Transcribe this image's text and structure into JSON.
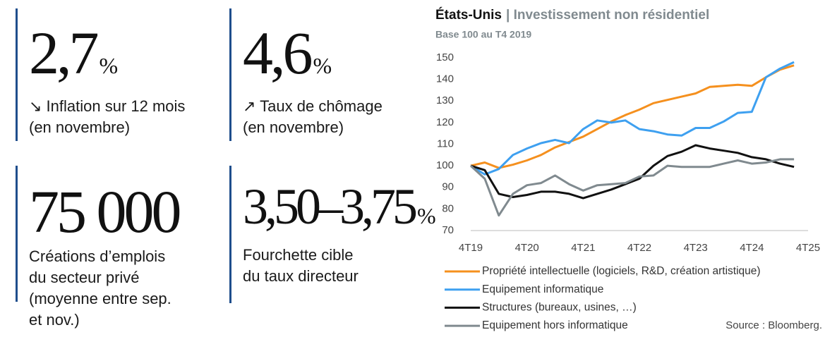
{
  "stats": [
    {
      "value": "2,7",
      "unit": "%",
      "label_lines": [
        "↘ Inflation sur 12 mois",
        "(en novembre)"
      ]
    },
    {
      "value": "4,6",
      "unit": "%",
      "label_lines": [
        "↗ Taux de chômage",
        "(en novembre)"
      ]
    },
    {
      "value": "75 000",
      "label_lines": [
        "Créations d’emplois",
        "du secteur privé",
        "(moyenne entre sep.",
        "et nov.)"
      ]
    },
    {
      "value": "3,50–3,75",
      "unit": "%",
      "label_lines": [
        "Fourchette cible",
        "du taux directeur"
      ]
    }
  ],
  "chart_data": {
    "type": "line",
    "title": "États-Unis",
    "title_suffix": "| Investissement non résidentiel",
    "subtitle": "Base 100 au T4 2019",
    "source": "Source : Bloomberg.",
    "categories": [
      "4T19",
      null,
      null,
      null,
      "4T20",
      null,
      null,
      null,
      "4T21",
      null,
      null,
      null,
      "4T22",
      null,
      null,
      null,
      "4T23",
      null,
      null,
      null,
      "4T24",
      null,
      null,
      null,
      "4T25"
    ],
    "ylim": [
      70,
      150
    ],
    "yticks": [
      70,
      80,
      90,
      100,
      110,
      120,
      130,
      140,
      150
    ],
    "grid": false,
    "series": [
      {
        "name": "Propriété intellectuelle (logiciels, R&D, création artistique)",
        "color": "#f5901e",
        "values": [
          100,
          101.5,
          99,
          100.5,
          102.5,
          105,
          108.5,
          111,
          113.5,
          117,
          120.5,
          123.5,
          126,
          129,
          130.5,
          132,
          133.5,
          136.5,
          137,
          137.5,
          137,
          141,
          144.5,
          146.5,
          null
        ]
      },
      {
        "name": "Equipement informatique",
        "color": "#3ea0f0",
        "values": [
          100,
          96,
          98.5,
          105,
          108,
          110.5,
          112,
          110.5,
          117,
          121,
          120,
          121,
          117,
          116,
          114.5,
          114,
          117.5,
          117.5,
          120.5,
          124.5,
          125,
          141,
          145,
          148,
          null
        ]
      },
      {
        "name": "Structures (bureaux, usines, …)",
        "color": "#111111",
        "values": [
          100,
          98,
          87,
          85.5,
          86.5,
          88,
          88,
          87,
          85,
          87,
          89,
          91.5,
          94,
          100,
          104.5,
          106.5,
          109.5,
          108,
          107,
          106,
          104,
          103,
          101,
          99.5,
          null
        ]
      },
      {
        "name": "Equipement hors informatique",
        "color": "#808a8f",
        "values": [
          100,
          94,
          77,
          87,
          91,
          92,
          95.5,
          91.5,
          88.5,
          91,
          91.5,
          92,
          95,
          95.5,
          100,
          99.5,
          99.5,
          99.5,
          101,
          102.5,
          101,
          101.5,
          103,
          103,
          null
        ]
      }
    ]
  }
}
